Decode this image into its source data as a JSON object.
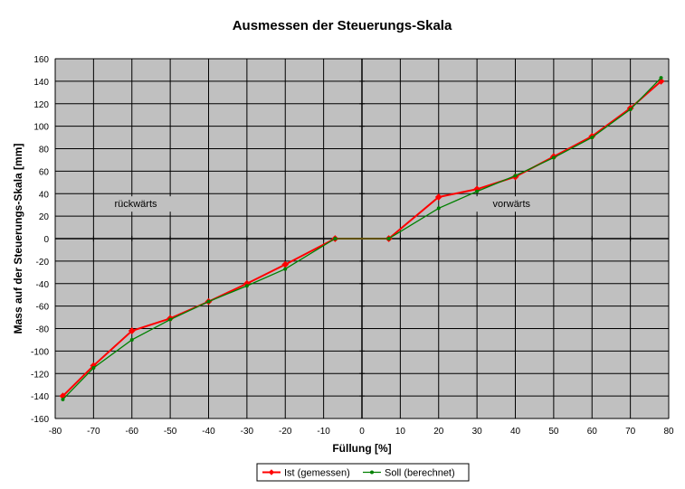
{
  "chart_data": {
    "type": "line",
    "title": "Ausmessen der Steuerungs-Skala",
    "xlabel": "Füllung [%]",
    "ylabel": "Mass auf der Steuerungs-Skala [mm]",
    "xlim": [
      -80,
      80
    ],
    "ylim": [
      -160,
      160
    ],
    "x_ticks": [
      -80,
      -70,
      -60,
      -50,
      -40,
      -30,
      -20,
      -10,
      0,
      10,
      20,
      30,
      40,
      50,
      60,
      70,
      80
    ],
    "y_ticks": [
      -160,
      -140,
      -120,
      -100,
      -80,
      -60,
      -40,
      -20,
      0,
      20,
      40,
      60,
      80,
      100,
      120,
      140,
      160
    ],
    "grid": true,
    "plot_background": "#c0c0c0",
    "legend_position": "bottom",
    "annotations": [
      {
        "text": "rückwärts",
        "x": -59,
        "y": 28
      },
      {
        "text": "vorwärts",
        "x": 39,
        "y": 28
      }
    ],
    "series": [
      {
        "name": "Ist (gemessen)",
        "color": "#ff0000",
        "marker": "diamond",
        "points": [
          [
            -78,
            -140
          ],
          [
            -70,
            -113
          ],
          [
            -60,
            -82
          ],
          [
            -50,
            -71
          ],
          [
            -40,
            -56
          ],
          [
            -30,
            -40
          ],
          [
            -20,
            -23
          ],
          [
            -7,
            0
          ],
          [
            7,
            0
          ],
          [
            20,
            37
          ],
          [
            30,
            44
          ],
          [
            40,
            55
          ],
          [
            50,
            73
          ],
          [
            60,
            91
          ],
          [
            70,
            116
          ],
          [
            78,
            140
          ]
        ]
      },
      {
        "name": "Soll (berechnet)",
        "color": "#008000",
        "marker": "dot",
        "points": [
          [
            -78,
            -143
          ],
          [
            -70,
            -115
          ],
          [
            -60,
            -90
          ],
          [
            -50,
            -72
          ],
          [
            -40,
            -56
          ],
          [
            -30,
            -42
          ],
          [
            -20,
            -27
          ],
          [
            -7,
            0
          ],
          [
            7,
            0
          ],
          [
            20,
            27
          ],
          [
            30,
            42
          ],
          [
            40,
            56
          ],
          [
            50,
            72
          ],
          [
            60,
            90
          ],
          [
            70,
            115
          ],
          [
            78,
            143
          ]
        ]
      }
    ]
  }
}
